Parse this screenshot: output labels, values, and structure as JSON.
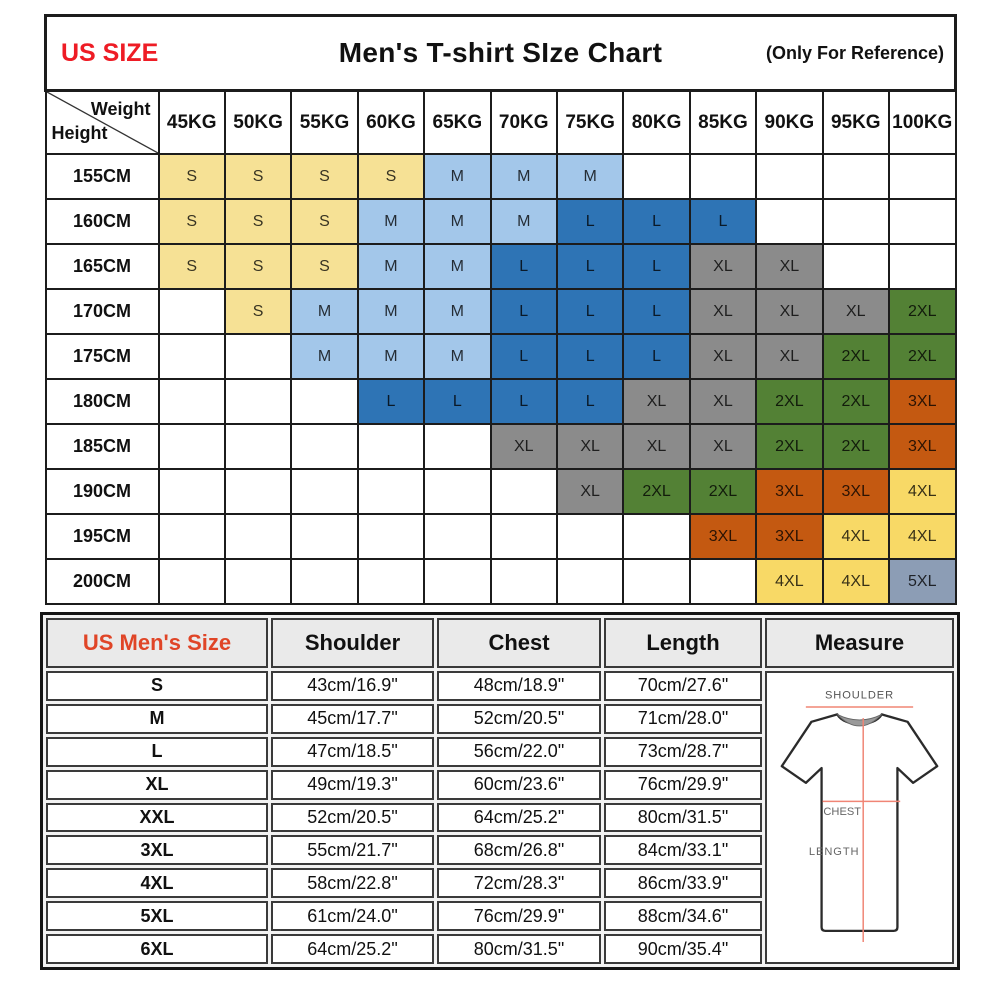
{
  "title_bar": {
    "left": "US SIZE",
    "center": "Men's T-shirt SIze Chart",
    "right": "(Only For Reference)"
  },
  "size_matrix": {
    "corner_top": "Weight",
    "corner_bottom": "Height",
    "weight_headers": [
      "45KG",
      "50KG",
      "55KG",
      "60KG",
      "65KG",
      "70KG",
      "75KG",
      "80KG",
      "85KG",
      "90KG",
      "95KG",
      "100KG"
    ],
    "rows": [
      {
        "height": "155CM",
        "cells": [
          "S",
          "S",
          "S",
          "S",
          "M",
          "M",
          "M",
          "",
          "",
          "",
          "",
          ""
        ]
      },
      {
        "height": "160CM",
        "cells": [
          "S",
          "S",
          "S",
          "M",
          "M",
          "M",
          "L",
          "L",
          "L",
          "",
          "",
          ""
        ]
      },
      {
        "height": "165CM",
        "cells": [
          "S",
          "S",
          "S",
          "M",
          "M",
          "L",
          "L",
          "L",
          "XL",
          "XL",
          "",
          ""
        ]
      },
      {
        "height": "170CM",
        "cells": [
          "",
          "S",
          "M",
          "M",
          "M",
          "L",
          "L",
          "L",
          "XL",
          "XL",
          "XL",
          "2XL"
        ]
      },
      {
        "height": "175CM",
        "cells": [
          "",
          "",
          "M",
          "M",
          "M",
          "L",
          "L",
          "L",
          "XL",
          "XL",
          "2XL",
          "2XL"
        ]
      },
      {
        "height": "180CM",
        "cells": [
          "",
          "",
          "",
          "L",
          "L",
          "L",
          "L",
          "XL",
          "XL",
          "2XL",
          "2XL",
          "3XL"
        ]
      },
      {
        "height": "185CM",
        "cells": [
          "",
          "",
          "",
          "",
          "",
          "XL",
          "XL",
          "XL",
          "XL",
          "2XL",
          "2XL",
          "3XL"
        ]
      },
      {
        "height": "190CM",
        "cells": [
          "",
          "",
          "",
          "",
          "",
          "",
          "XL",
          "2XL",
          "2XL",
          "3XL",
          "3XL",
          "4XL"
        ]
      },
      {
        "height": "195CM",
        "cells": [
          "",
          "",
          "",
          "",
          "",
          "",
          "",
          "",
          "3XL",
          "3XL",
          "4XL",
          "4XL"
        ]
      },
      {
        "height": "200CM",
        "cells": [
          "",
          "",
          "",
          "",
          "",
          "",
          "",
          "",
          "",
          "4XL",
          "4XL",
          "5XL"
        ]
      }
    ],
    "size_colors": {
      "S": "#f6e195",
      "M": "#a3c7ea",
      "L": "#2e74b5",
      "XL": "#8b8b8b",
      "2XL": "#538135",
      "3XL": "#c45911",
      "4XL": "#f8d966",
      "5XL": "#8c9db5"
    }
  },
  "measurements": {
    "headers": [
      "US Men's Size",
      "Shoulder",
      "Chest",
      "Length",
      "Measure"
    ],
    "rows": [
      {
        "size": "S",
        "shoulder": "43cm/16.9\"",
        "chest": "48cm/18.9\"",
        "length": "70cm/27.6\""
      },
      {
        "size": "M",
        "shoulder": "45cm/17.7\"",
        "chest": "52cm/20.5\"",
        "length": "71cm/28.0\""
      },
      {
        "size": "L",
        "shoulder": "47cm/18.5\"",
        "chest": "56cm/22.0\"",
        "length": "73cm/28.7\""
      },
      {
        "size": "XL",
        "shoulder": "49cm/19.3\"",
        "chest": "60cm/23.6\"",
        "length": "76cm/29.9\""
      },
      {
        "size": "XXL",
        "shoulder": "52cm/20.5\"",
        "chest": "64cm/25.2\"",
        "length": "80cm/31.5\""
      },
      {
        "size": "3XL",
        "shoulder": "55cm/21.7\"",
        "chest": "68cm/26.8\"",
        "length": "84cm/33.1\""
      },
      {
        "size": "4XL",
        "shoulder": "58cm/22.8\"",
        "chest": "72cm/28.3\"",
        "length": "86cm/33.9\""
      },
      {
        "size": "5XL",
        "shoulder": "61cm/24.0\"",
        "chest": "76cm/29.9\"",
        "length": "88cm/34.6\""
      },
      {
        "size": "6XL",
        "shoulder": "64cm/25.2\"",
        "chest": "80cm/31.5\"",
        "length": "90cm/35.4\""
      }
    ],
    "diagram_labels": {
      "shoulder": "SHOULDER",
      "chest": "CHEST",
      "length": "LENGTH"
    },
    "diagram_line_color": "#f08575"
  },
  "accent": {
    "us_size_color": "#ee1c25",
    "us_mens_size_color": "#e04527"
  }
}
